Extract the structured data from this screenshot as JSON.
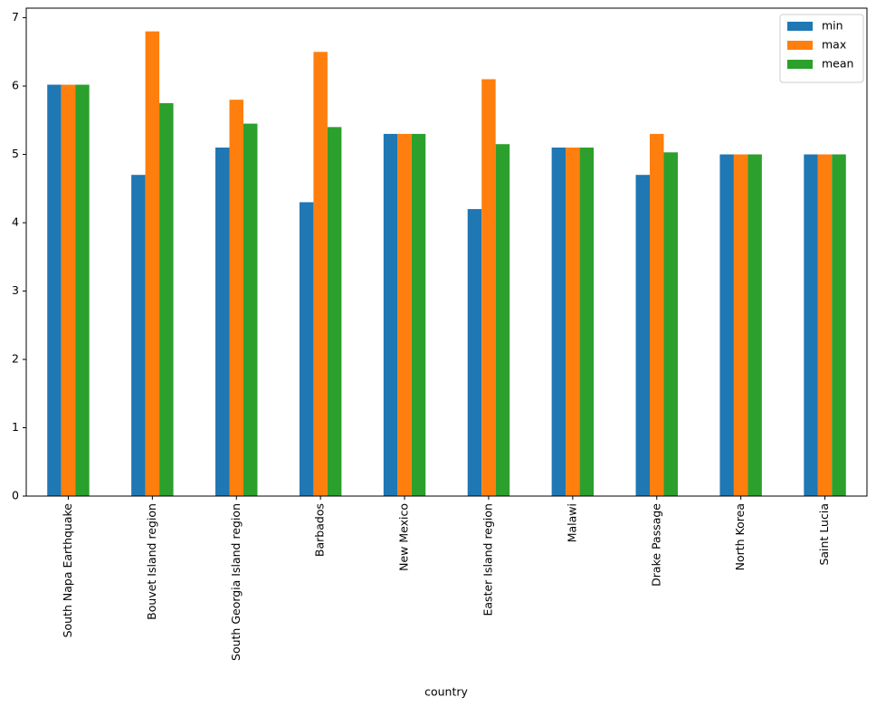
{
  "chart_data": {
    "type": "bar",
    "x_label": "country",
    "categories": [
      "South Napa Earthquake",
      "Bouvet Island region",
      "South Georgia Island region",
      "Barbados",
      "New Mexico",
      "Easter Island region",
      "Malawi",
      "Drake Passage",
      "North Korea",
      "Saint Lucia"
    ],
    "series": [
      {
        "name": "min",
        "color": "#1f77b4",
        "values": [
          6.02,
          4.7,
          5.1,
          4.3,
          5.3,
          4.2,
          5.1,
          4.7,
          5.0,
          5.0
        ]
      },
      {
        "name": "max",
        "color": "#ff7f0e",
        "values": [
          6.02,
          6.8,
          5.8,
          6.5,
          5.3,
          6.1,
          5.1,
          5.3,
          5.0,
          5.0
        ]
      },
      {
        "name": "mean",
        "color": "#2ca02c",
        "values": [
          6.02,
          5.75,
          5.45,
          5.4,
          5.3,
          5.15,
          5.1,
          5.03,
          5.0,
          5.0
        ]
      }
    ],
    "ylim": [
      0,
      7.14
    ],
    "yticks": [
      0,
      1,
      2,
      3,
      4,
      5,
      6,
      7
    ],
    "legend": "upper-right",
    "grid": false
  }
}
